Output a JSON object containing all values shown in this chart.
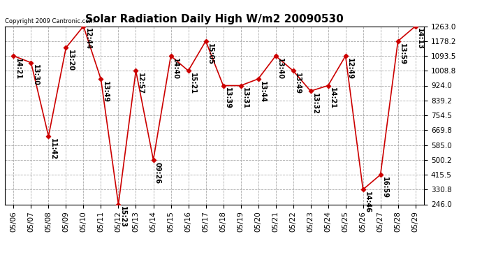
{
  "title": "Solar Radiation Daily High W/m2 20090530",
  "copyright": "Copyright 2009 Cantronic.com",
  "dates": [
    "05/06",
    "05/07",
    "05/08",
    "05/09",
    "05/10",
    "05/11",
    "05/12",
    "05/13",
    "05/14",
    "05/15",
    "05/16",
    "05/17",
    "05/18",
    "05/19",
    "05/20",
    "05/21",
    "05/22",
    "05/23",
    "05/24",
    "05/25",
    "05/26",
    "05/27",
    "05/28",
    "05/29"
  ],
  "values": [
    1093.5,
    1055.0,
    635.0,
    1140.0,
    1263.0,
    960.0,
    246.0,
    1008.8,
    500.2,
    1093.5,
    1008.8,
    1178.2,
    924.0,
    924.0,
    962.0,
    1093.5,
    1008.8,
    893.0,
    924.0,
    1093.5,
    330.8,
    415.5,
    1178.2,
    1263.0
  ],
  "labels": [
    "14:21",
    "13:30",
    "11:42",
    "13:20",
    "12:44",
    "13:49",
    "15:23",
    "12:57",
    "09:26",
    "14:40",
    "15:21",
    "15:05",
    "13:39",
    "13:31",
    "13:44",
    "13:40",
    "13:49",
    "13:32",
    "14:21",
    "12:49",
    "14:46",
    "16:59",
    "13:59",
    "14:13"
  ],
  "yticks": [
    246.0,
    330.8,
    415.5,
    500.2,
    585.0,
    669.8,
    754.5,
    839.2,
    924.0,
    1008.8,
    1093.5,
    1178.2,
    1263.0
  ],
  "ymin": 246.0,
  "ymax": 1263.0,
  "line_color": "#cc0000",
  "marker_color": "#cc0000",
  "bg_color": "#ffffff",
  "grid_color": "#aaaaaa",
  "title_fontsize": 11,
  "label_fontsize": 7,
  "tick_fontsize": 7.5,
  "copyright_fontsize": 6
}
